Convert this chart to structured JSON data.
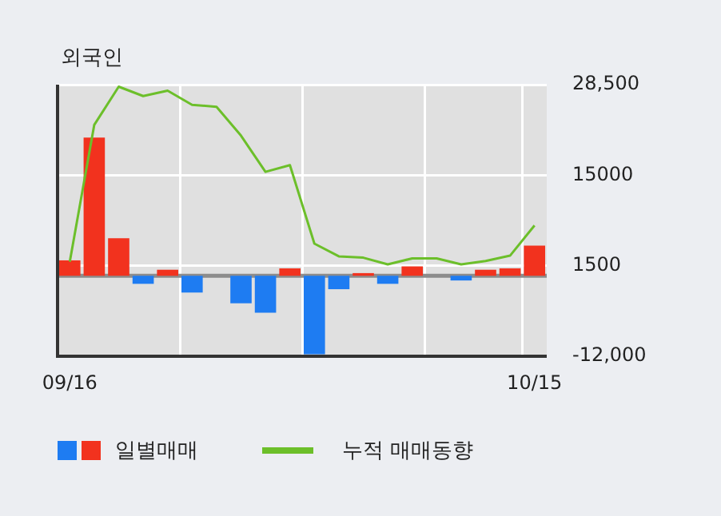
{
  "chart_data": {
    "type": "bar",
    "title": "외국인",
    "categories": [
      "09/16",
      null,
      null,
      null,
      null,
      null,
      null,
      null,
      null,
      null,
      null,
      null,
      null,
      null,
      null,
      null,
      null,
      null,
      null,
      "10/15"
    ],
    "series": [
      {
        "name": "일별매매",
        "colors": [
          "#f2321e",
          "#f2321e",
          "#f2321e",
          "#1e7cf2",
          "#f2321e",
          "#1e7cf2",
          "#f2321e",
          "#1e7cf2",
          "#1e7cf2",
          "#f2321e",
          "#1e7cf2",
          "#1e7cf2",
          "#f2321e",
          "#1e7cf2",
          "#f2321e",
          "#f2321e",
          "#1e7cf2",
          "#f2321e",
          "#f2321e",
          "#f2321e"
        ],
        "values": [
          2300,
          20600,
          5600,
          -1200,
          900,
          -2500,
          0,
          -4100,
          -5500,
          1100,
          -11700,
          -2000,
          400,
          -1200,
          1400,
          0,
          -700,
          900,
          1100,
          4500
        ]
      },
      {
        "name": "누적 매매동향",
        "type": "line",
        "color": "#6cbf2a",
        "values": [
          2100,
          22500,
          28200,
          26800,
          27600,
          25500,
          25200,
          20900,
          15500,
          16500,
          4800,
          2900,
          2700,
          1700,
          2600,
          2600,
          1700,
          2200,
          3000,
          7500
        ]
      }
    ],
    "ylim": [
      -12000,
      28500
    ],
    "yticks": [
      {
        "value": -12000,
        "label": "-12,000"
      },
      1500,
      15000,
      {
        "value": 28500,
        "label": "28,500"
      }
    ],
    "ref_lines": [
      {
        "axis": "y",
        "value": 0,
        "color": "#8c8c8c"
      }
    ],
    "grid": true,
    "legend": "bottom",
    "marker": "none"
  }
}
